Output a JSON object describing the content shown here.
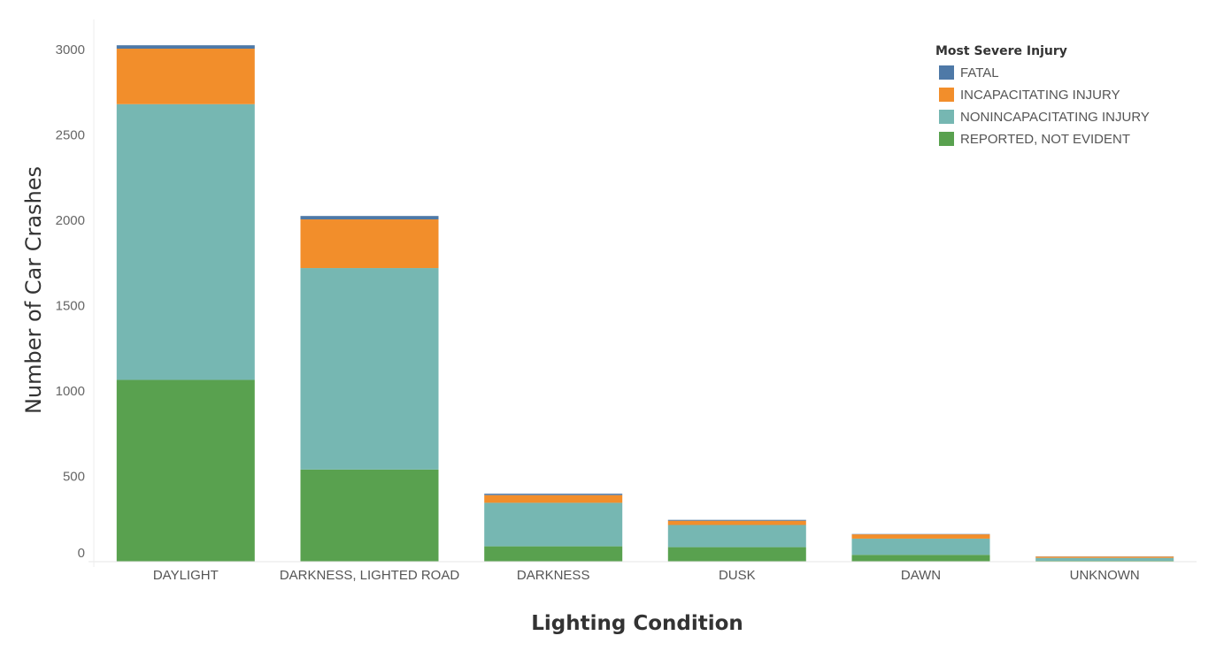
{
  "chart_data": {
    "type": "bar",
    "stacked": true,
    "categories": [
      "DAYLIGHT",
      "DARKNESS, LIGHTED ROAD",
      "DARKNESS",
      "DUSK",
      "DAWN",
      "UNKNOWN"
    ],
    "series": [
      {
        "name": "REPORTED, NOT EVIDENT",
        "color": "#59a14f",
        "values": [
          1065,
          540,
          90,
          85,
          40,
          5
        ]
      },
      {
        "name": "NONINCAPACITATING INJURY",
        "color": "#76b7b2",
        "values": [
          1615,
          1180,
          255,
          130,
          95,
          17
        ]
      },
      {
        "name": "INCAPACITATING INJURY",
        "color": "#f28e2b",
        "values": [
          325,
          285,
          45,
          25,
          25,
          8
        ]
      },
      {
        "name": "FATAL",
        "color": "#4e79a7",
        "values": [
          20,
          20,
          8,
          5,
          2,
          1
        ]
      }
    ],
    "xlabel": "Lighting Condition",
    "ylabel": "Number of Car Crashes",
    "ylim": [
      0,
      3000
    ],
    "yticks": [
      0,
      500,
      1000,
      1500,
      2000,
      2500,
      3000
    ],
    "legend_title": "Most Severe Injury",
    "legend_order": [
      "FATAL",
      "INCAPACITATING INJURY",
      "NONINCAPACITATING INJURY",
      "REPORTED, NOT EVIDENT"
    ],
    "legend_position": "top-right",
    "grid": false
  }
}
